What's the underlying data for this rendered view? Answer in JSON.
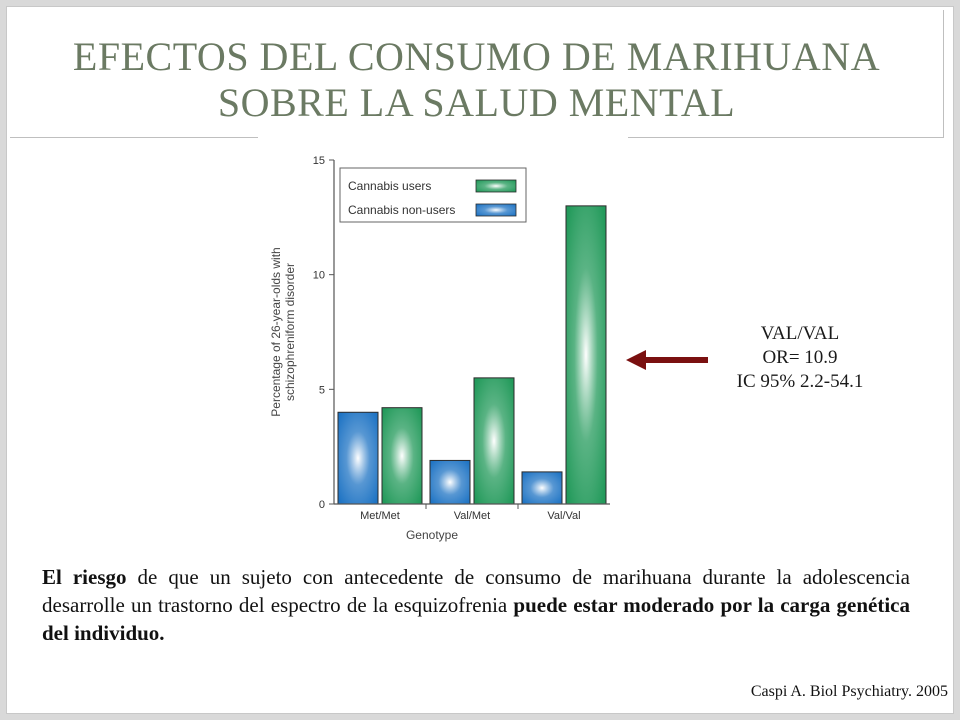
{
  "slide": {
    "title_line1": "EFECTOS DEL CONSUMO DE MARIHUANA",
    "title_line2": "SOBRE LA SALUD MENTAL"
  },
  "annotation": {
    "line1": "VAL/VAL",
    "line2": "OR= 10.9",
    "line3": "IC 95% 2.2-54.1",
    "arrow_color": "#7a1010"
  },
  "body_text": {
    "p1_bold": "El riesgo",
    "p2": " de que un sujeto con antecedente de consumo de marihuana durante la adolescencia desarrolle un trastorno del espectro de la esquizofrenia ",
    "p3_bold": "puede estar moderado por la carga genética del individuo."
  },
  "citation": "Caspi A. Biol Psychiatry. 2005",
  "chart_data": {
    "type": "bar",
    "categories": [
      "Met/Met",
      "Val/Met",
      "Val/Val"
    ],
    "series": [
      {
        "name": "Cannabis non-users",
        "values": [
          4.0,
          1.9,
          1.4
        ],
        "color": "#1f74c4"
      },
      {
        "name": "Cannabis users",
        "values": [
          4.2,
          5.5,
          13.0
        ],
        "color": "#239a5b"
      }
    ],
    "ylim": [
      0,
      15
    ],
    "yticks": [
      "0",
      "5",
      "10",
      "15"
    ],
    "ylabel_line1": "Percentage of 26-year-olds with",
    "ylabel_line2": "schizophreniform disorder",
    "xlabel": "Genotype",
    "legend": [
      {
        "label": "Cannabis users",
        "series": 1
      },
      {
        "label": "Cannabis non-users",
        "series": 0
      }
    ],
    "legend_position": "top-left"
  }
}
